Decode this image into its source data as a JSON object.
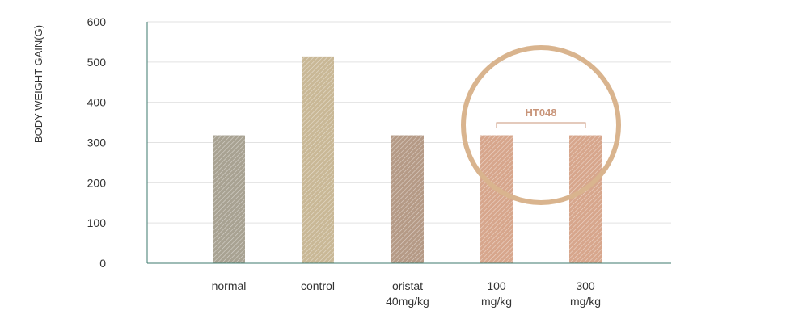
{
  "chart_data": {
    "type": "bar",
    "title": "",
    "xlabel": "",
    "ylabel": "BODY WEIGHT GAIN(G)",
    "ylim": [
      0,
      600
    ],
    "yticks": [
      0,
      100,
      200,
      300,
      400,
      500,
      600
    ],
    "grid": true,
    "categories": [
      [
        "normal"
      ],
      [
        "control"
      ],
      [
        "oristat",
        "40mg/kg"
      ],
      [
        "100",
        "mg/kg"
      ],
      [
        "300",
        "mg/kg"
      ]
    ],
    "values": [
      318,
      514,
      318,
      318,
      318
    ],
    "bar_colors": [
      "#a8a292",
      "#c9b896",
      "#b59a86",
      "#d7a68c",
      "#d7a68c"
    ],
    "annotation": {
      "label": "HT048",
      "groups": [
        3,
        4
      ],
      "color": "#c8957a",
      "circle_color": "#d9b48e"
    },
    "axis_color": "#3e7a6e",
    "grid_color": "#e2e2e2"
  }
}
